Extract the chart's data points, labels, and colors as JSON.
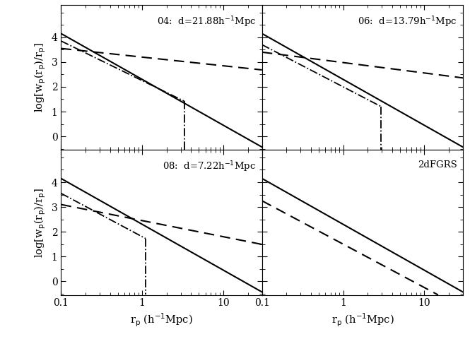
{
  "panels": [
    {
      "label": "04:  d=21.88h$^{-1}$Mpc",
      "row": 0,
      "col": 0,
      "solid_slope": -1.85,
      "solid_y_at_1": 2.3,
      "dashed_slope": -0.35,
      "dashed_y_at_01": 3.55,
      "dashdot": {
        "slope": -1.6,
        "y_at_01": 3.85,
        "cutoff": 3.3,
        "drop_to": -0.7
      }
    },
    {
      "label": "06:  d=13.79h$^{-1}$Mpc",
      "row": 0,
      "col": 1,
      "solid_slope": -1.85,
      "solid_y_at_1": 2.3,
      "dashed_slope": -0.42,
      "dashed_y_at_01": 3.4,
      "dashdot": {
        "slope": -1.7,
        "y_at_01": 3.7,
        "cutoff": 2.9,
        "drop_to": -0.7
      }
    },
    {
      "label": "08:  d=7.22h$^{-1}$Mpc",
      "row": 1,
      "col": 0,
      "solid_slope": -1.85,
      "solid_y_at_1": 2.3,
      "dashed_slope": -0.65,
      "dashed_y_at_01": 3.1,
      "dashdot": {
        "slope": -1.75,
        "y_at_01": 3.55,
        "cutoff": 1.1,
        "drop_to": -0.7
      }
    },
    {
      "label": "2dFGRS",
      "row": 1,
      "col": 1,
      "solid_slope": -1.85,
      "solid_y_at_1": 2.3,
      "dashed_slope": -1.75,
      "dashed_y_at_01": 3.25,
      "dashdot": null
    }
  ],
  "xlim": [
    0.1,
    30.0
  ],
  "ylim": [
    -0.55,
    5.3
  ],
  "yticks": [
    0,
    1,
    2,
    3,
    4
  ],
  "bg_color": "white"
}
